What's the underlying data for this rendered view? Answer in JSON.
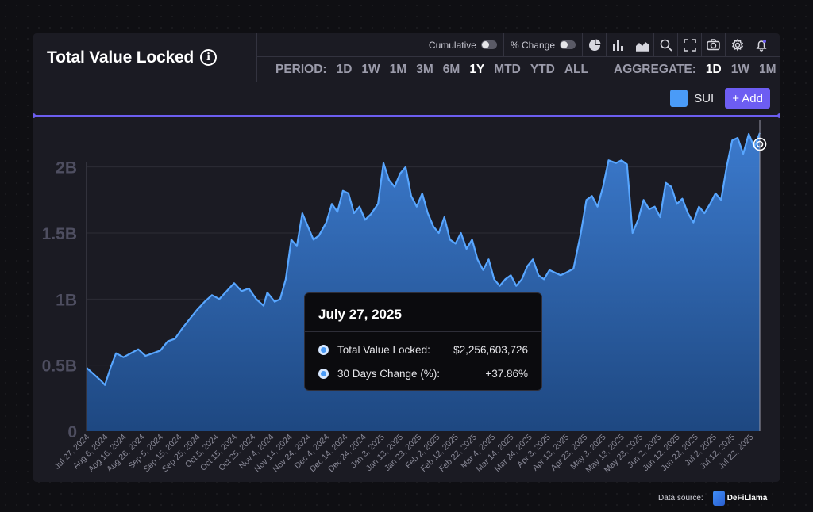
{
  "header": {
    "title": "Total Value Locked",
    "info_icon": "info-circle-icon"
  },
  "toolbar": {
    "cumulative_label": "Cumulative",
    "percent_change_label": "% Change",
    "icons": [
      "pie-chart-icon",
      "bar-chart-icon",
      "area-chart-icon",
      "search-icon",
      "fullscreen-icon",
      "camera-icon",
      "gear-icon",
      "bell-icon"
    ]
  },
  "period": {
    "label": "PERIOD:",
    "options": [
      "1D",
      "1W",
      "1M",
      "3M",
      "6M",
      "1Y",
      "MTD",
      "YTD",
      "ALL"
    ],
    "selected": "1Y"
  },
  "aggregate": {
    "label": "AGGREGATE:",
    "options": [
      "1D",
      "1W",
      "1M"
    ],
    "selected": "1D"
  },
  "series_legend": {
    "name": "SUI",
    "add_label": "+ Add"
  },
  "colors": {
    "accent": "#6d5df2",
    "series": "#4a9bf7",
    "background": "#1b1b23"
  },
  "tooltip": {
    "date": "July 27, 2025",
    "rows": [
      {
        "label": "Total Value Locked:",
        "value": "$2,256,603,726"
      },
      {
        "label": "30 Days Change (%):",
        "value": "+37.86%"
      }
    ]
  },
  "footer": {
    "data_source_label": "Data source:",
    "brand": "DeFiLlama"
  },
  "chart_data": {
    "type": "area",
    "series": [
      {
        "name": "SUI",
        "unit": "USD"
      }
    ],
    "ylim": [
      0,
      2400000000
    ],
    "yticks": [
      {
        "value": 0,
        "label": "0"
      },
      {
        "value": 500000000,
        "label": "0.5B"
      },
      {
        "value": 1000000000,
        "label": "1B"
      },
      {
        "value": 1500000000,
        "label": "1.5B"
      },
      {
        "value": 2000000000,
        "label": "2B"
      }
    ],
    "xlim": [
      "2024-07-27",
      "2025-07-27"
    ],
    "xticks": [
      "Jul 27, 2024",
      "Aug 6, 2024",
      "Aug 16, 2024",
      "Aug 26, 2024",
      "Sep 5, 2024",
      "Sep 15, 2024",
      "Sep 25, 2024",
      "Oct 5, 2024",
      "Oct 15, 2024",
      "Oct 25, 2024",
      "Nov 4, 2024",
      "Nov 14, 2024",
      "Nov 24, 2024",
      "Dec 4, 2024",
      "Dec 14, 2024",
      "Dec 24, 2024",
      "Jan 3, 2025",
      "Jan 13, 2025",
      "Jan 23, 2025",
      "Feb 2, 2025",
      "Feb 12, 2025",
      "Feb 22, 2025",
      "Mar 4, 2025",
      "Mar 14, 2025",
      "Mar 24, 2025",
      "Apr 3, 2025",
      "Apr 13, 2025",
      "Apr 23, 2025",
      "May 3, 2025",
      "May 13, 2025",
      "May 23, 2025",
      "Jun 2, 2025",
      "Jun 12, 2025",
      "Jun 22, 2025",
      "Jul 2, 2025",
      "Jul 12, 2025",
      "Jul 22, 2025"
    ],
    "grid": true,
    "points": [
      [
        "2024-07-27",
        480000000
      ],
      [
        "2024-07-31",
        430000000
      ],
      [
        "2024-08-04",
        380000000
      ],
      [
        "2024-08-06",
        350000000
      ],
      [
        "2024-08-09",
        480000000
      ],
      [
        "2024-08-12",
        590000000
      ],
      [
        "2024-08-16",
        560000000
      ],
      [
        "2024-08-20",
        590000000
      ],
      [
        "2024-08-24",
        620000000
      ],
      [
        "2024-08-28",
        570000000
      ],
      [
        "2024-09-01",
        590000000
      ],
      [
        "2024-09-05",
        610000000
      ],
      [
        "2024-09-09",
        680000000
      ],
      [
        "2024-09-13",
        700000000
      ],
      [
        "2024-09-17",
        780000000
      ],
      [
        "2024-09-21",
        850000000
      ],
      [
        "2024-09-25",
        920000000
      ],
      [
        "2024-09-29",
        980000000
      ],
      [
        "2024-10-03",
        1030000000
      ],
      [
        "2024-10-07",
        1000000000
      ],
      [
        "2024-10-11",
        1060000000
      ],
      [
        "2024-10-15",
        1120000000
      ],
      [
        "2024-10-19",
        1060000000
      ],
      [
        "2024-10-23",
        1080000000
      ],
      [
        "2024-10-27",
        1000000000
      ],
      [
        "2024-10-31",
        950000000
      ],
      [
        "2024-11-02",
        1050000000
      ],
      [
        "2024-11-06",
        980000000
      ],
      [
        "2024-11-09",
        1000000000
      ],
      [
        "2024-11-12",
        1150000000
      ],
      [
        "2024-11-15",
        1450000000
      ],
      [
        "2024-11-18",
        1400000000
      ],
      [
        "2024-11-21",
        1650000000
      ],
      [
        "2024-11-24",
        1550000000
      ],
      [
        "2024-11-27",
        1450000000
      ],
      [
        "2024-11-30",
        1480000000
      ],
      [
        "2024-12-04",
        1580000000
      ],
      [
        "2024-12-07",
        1720000000
      ],
      [
        "2024-12-10",
        1660000000
      ],
      [
        "2024-12-13",
        1820000000
      ],
      [
        "2024-12-16",
        1800000000
      ],
      [
        "2024-12-19",
        1650000000
      ],
      [
        "2024-12-22",
        1700000000
      ],
      [
        "2024-12-25",
        1600000000
      ],
      [
        "2024-12-28",
        1640000000
      ],
      [
        "2025-01-01",
        1720000000
      ],
      [
        "2025-01-04",
        2030000000
      ],
      [
        "2025-01-07",
        1900000000
      ],
      [
        "2025-01-10",
        1850000000
      ],
      [
        "2025-01-13",
        1950000000
      ],
      [
        "2025-01-16",
        2000000000
      ],
      [
        "2025-01-19",
        1780000000
      ],
      [
        "2025-01-22",
        1700000000
      ],
      [
        "2025-01-25",
        1800000000
      ],
      [
        "2025-01-28",
        1650000000
      ],
      [
        "2025-01-31",
        1550000000
      ],
      [
        "2025-02-03",
        1500000000
      ],
      [
        "2025-02-06",
        1620000000
      ],
      [
        "2025-02-09",
        1450000000
      ],
      [
        "2025-02-12",
        1420000000
      ],
      [
        "2025-02-15",
        1500000000
      ],
      [
        "2025-02-18",
        1380000000
      ],
      [
        "2025-02-21",
        1450000000
      ],
      [
        "2025-02-24",
        1300000000
      ],
      [
        "2025-02-27",
        1220000000
      ],
      [
        "2025-03-02",
        1300000000
      ],
      [
        "2025-03-05",
        1150000000
      ],
      [
        "2025-03-08",
        1100000000
      ],
      [
        "2025-03-11",
        1150000000
      ],
      [
        "2025-03-14",
        1180000000
      ],
      [
        "2025-03-17",
        1100000000
      ],
      [
        "2025-03-20",
        1150000000
      ],
      [
        "2025-03-23",
        1250000000
      ],
      [
        "2025-03-26",
        1300000000
      ],
      [
        "2025-03-29",
        1180000000
      ],
      [
        "2025-04-01",
        1150000000
      ],
      [
        "2025-04-04",
        1220000000
      ],
      [
        "2025-04-07",
        1200000000
      ],
      [
        "2025-04-10",
        1180000000
      ],
      [
        "2025-04-13",
        1200000000
      ],
      [
        "2025-04-17",
        1230000000
      ],
      [
        "2025-04-21",
        1500000000
      ],
      [
        "2025-04-24",
        1750000000
      ],
      [
        "2025-04-27",
        1780000000
      ],
      [
        "2025-04-30",
        1700000000
      ],
      [
        "2025-05-03",
        1850000000
      ],
      [
        "2025-05-06",
        2050000000
      ],
      [
        "2025-05-10",
        2030000000
      ],
      [
        "2025-05-13",
        2050000000
      ],
      [
        "2025-05-16",
        2020000000
      ],
      [
        "2025-05-19",
        1500000000
      ],
      [
        "2025-05-22",
        1600000000
      ],
      [
        "2025-05-25",
        1750000000
      ],
      [
        "2025-05-28",
        1680000000
      ],
      [
        "2025-05-31",
        1700000000
      ],
      [
        "2025-06-03",
        1620000000
      ],
      [
        "2025-06-06",
        1880000000
      ],
      [
        "2025-06-09",
        1850000000
      ],
      [
        "2025-06-12",
        1720000000
      ],
      [
        "2025-06-15",
        1760000000
      ],
      [
        "2025-06-18",
        1650000000
      ],
      [
        "2025-06-21",
        1580000000
      ],
      [
        "2025-06-24",
        1700000000
      ],
      [
        "2025-06-27",
        1650000000
      ],
      [
        "2025-06-30",
        1720000000
      ],
      [
        "2025-07-03",
        1800000000
      ],
      [
        "2025-07-06",
        1750000000
      ],
      [
        "2025-07-09",
        2000000000
      ],
      [
        "2025-07-12",
        2200000000
      ],
      [
        "2025-07-15",
        2220000000
      ],
      [
        "2025-07-18",
        2100000000
      ],
      [
        "2025-07-21",
        2250000000
      ],
      [
        "2025-07-24",
        2150000000
      ],
      [
        "2025-07-27",
        2256603726
      ]
    ]
  }
}
